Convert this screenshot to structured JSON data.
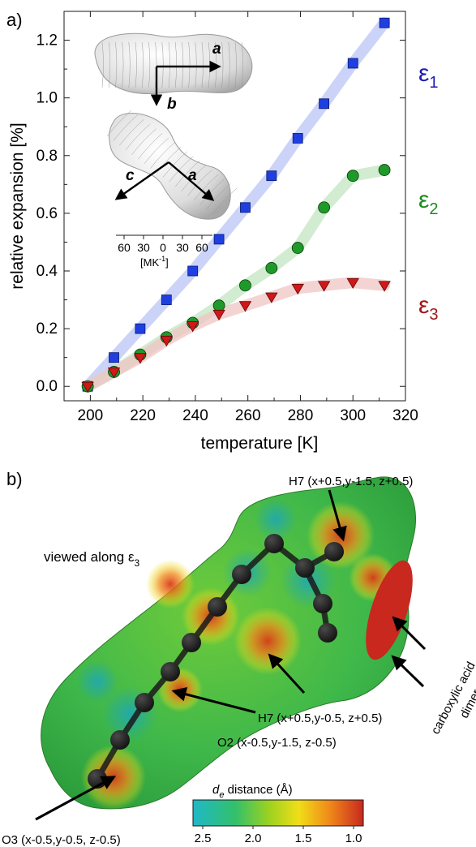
{
  "panel_a": {
    "label": "a)",
    "chart_data": {
      "type": "scatter",
      "xlabel": "temperature [K]",
      "ylabel": "relative expansion [%]",
      "xlim": [
        190,
        320
      ],
      "ylim": [
        -0.05,
        1.3
      ],
      "x_ticks": [
        200,
        220,
        240,
        260,
        280,
        300,
        320
      ],
      "y_ticks": [
        0.0,
        0.2,
        0.4,
        0.6,
        0.8,
        1.0,
        1.2
      ],
      "grid": false,
      "series": [
        {
          "name": "ε1",
          "marker": "square",
          "color": "#1f3fe0",
          "band_color": "#b9c4f5",
          "x": [
            199,
            209,
            219,
            229,
            239,
            249,
            259,
            269,
            279,
            289,
            300,
            312
          ],
          "y": [
            0.0,
            0.1,
            0.2,
            0.3,
            0.4,
            0.51,
            0.62,
            0.73,
            0.86,
            0.98,
            1.12,
            1.26
          ]
        },
        {
          "name": "ε2",
          "marker": "circle",
          "color": "#1f9a2a",
          "band_color": "#c2e6c2",
          "x": [
            199,
            209,
            219,
            229,
            239,
            249,
            259,
            269,
            279,
            289,
            300,
            312
          ],
          "y": [
            0.0,
            0.05,
            0.11,
            0.17,
            0.22,
            0.28,
            0.35,
            0.41,
            0.48,
            0.62,
            0.73,
            0.75
          ]
        },
        {
          "name": "ε3",
          "marker": "triangle-down",
          "color": "#d01818",
          "band_color": "#f0c4c4",
          "x": [
            199,
            209,
            219,
            229,
            239,
            249,
            259,
            269,
            279,
            289,
            300,
            312
          ],
          "y": [
            0.0,
            0.05,
            0.1,
            0.16,
            0.21,
            0.25,
            0.28,
            0.31,
            0.34,
            0.35,
            0.36,
            0.35
          ]
        }
      ],
      "series_labels": [
        {
          "text_main": "ε",
          "text_sub": "1",
          "color": "#1b1bb0"
        },
        {
          "text_main": "ε",
          "text_sub": "2",
          "color": "#1b8a1b"
        },
        {
          "text_main": "ε",
          "text_sub": "3",
          "color": "#a01515"
        }
      ]
    },
    "inset": {
      "axis_a": "a",
      "axis_b": "b",
      "axis_c": "c",
      "axis_a2": "a",
      "scale_ticks": [
        "60",
        "30",
        "0",
        "30",
        "60"
      ],
      "scale_unit_main": "[MK",
      "scale_unit_sup": "-1",
      "scale_unit_end": "]"
    }
  },
  "panel_b": {
    "label": "b)",
    "viewed_along_main": "viewed along ε",
    "viewed_along_sub": "3",
    "annotations": {
      "h7_top": "H7 (x+0.5,y-1.5, z+0.5)",
      "carboxylic_line1": "carboxylic acid",
      "carboxylic_line2": "dimer",
      "h7_mid": "H7 (x+0.5,y-0.5, z+0.5)",
      "o2": "O2 (x-0.5,y-1.5, z-0.5)",
      "o3": "O3 (x-0.5,y-0.5, z-0.5)"
    },
    "colorbar": {
      "title_main": "d",
      "title_sub": "e",
      "title_rest": " distance (Å)",
      "ticks": [
        "2.5",
        "2.0",
        "1.5",
        "1.0"
      ]
    }
  }
}
